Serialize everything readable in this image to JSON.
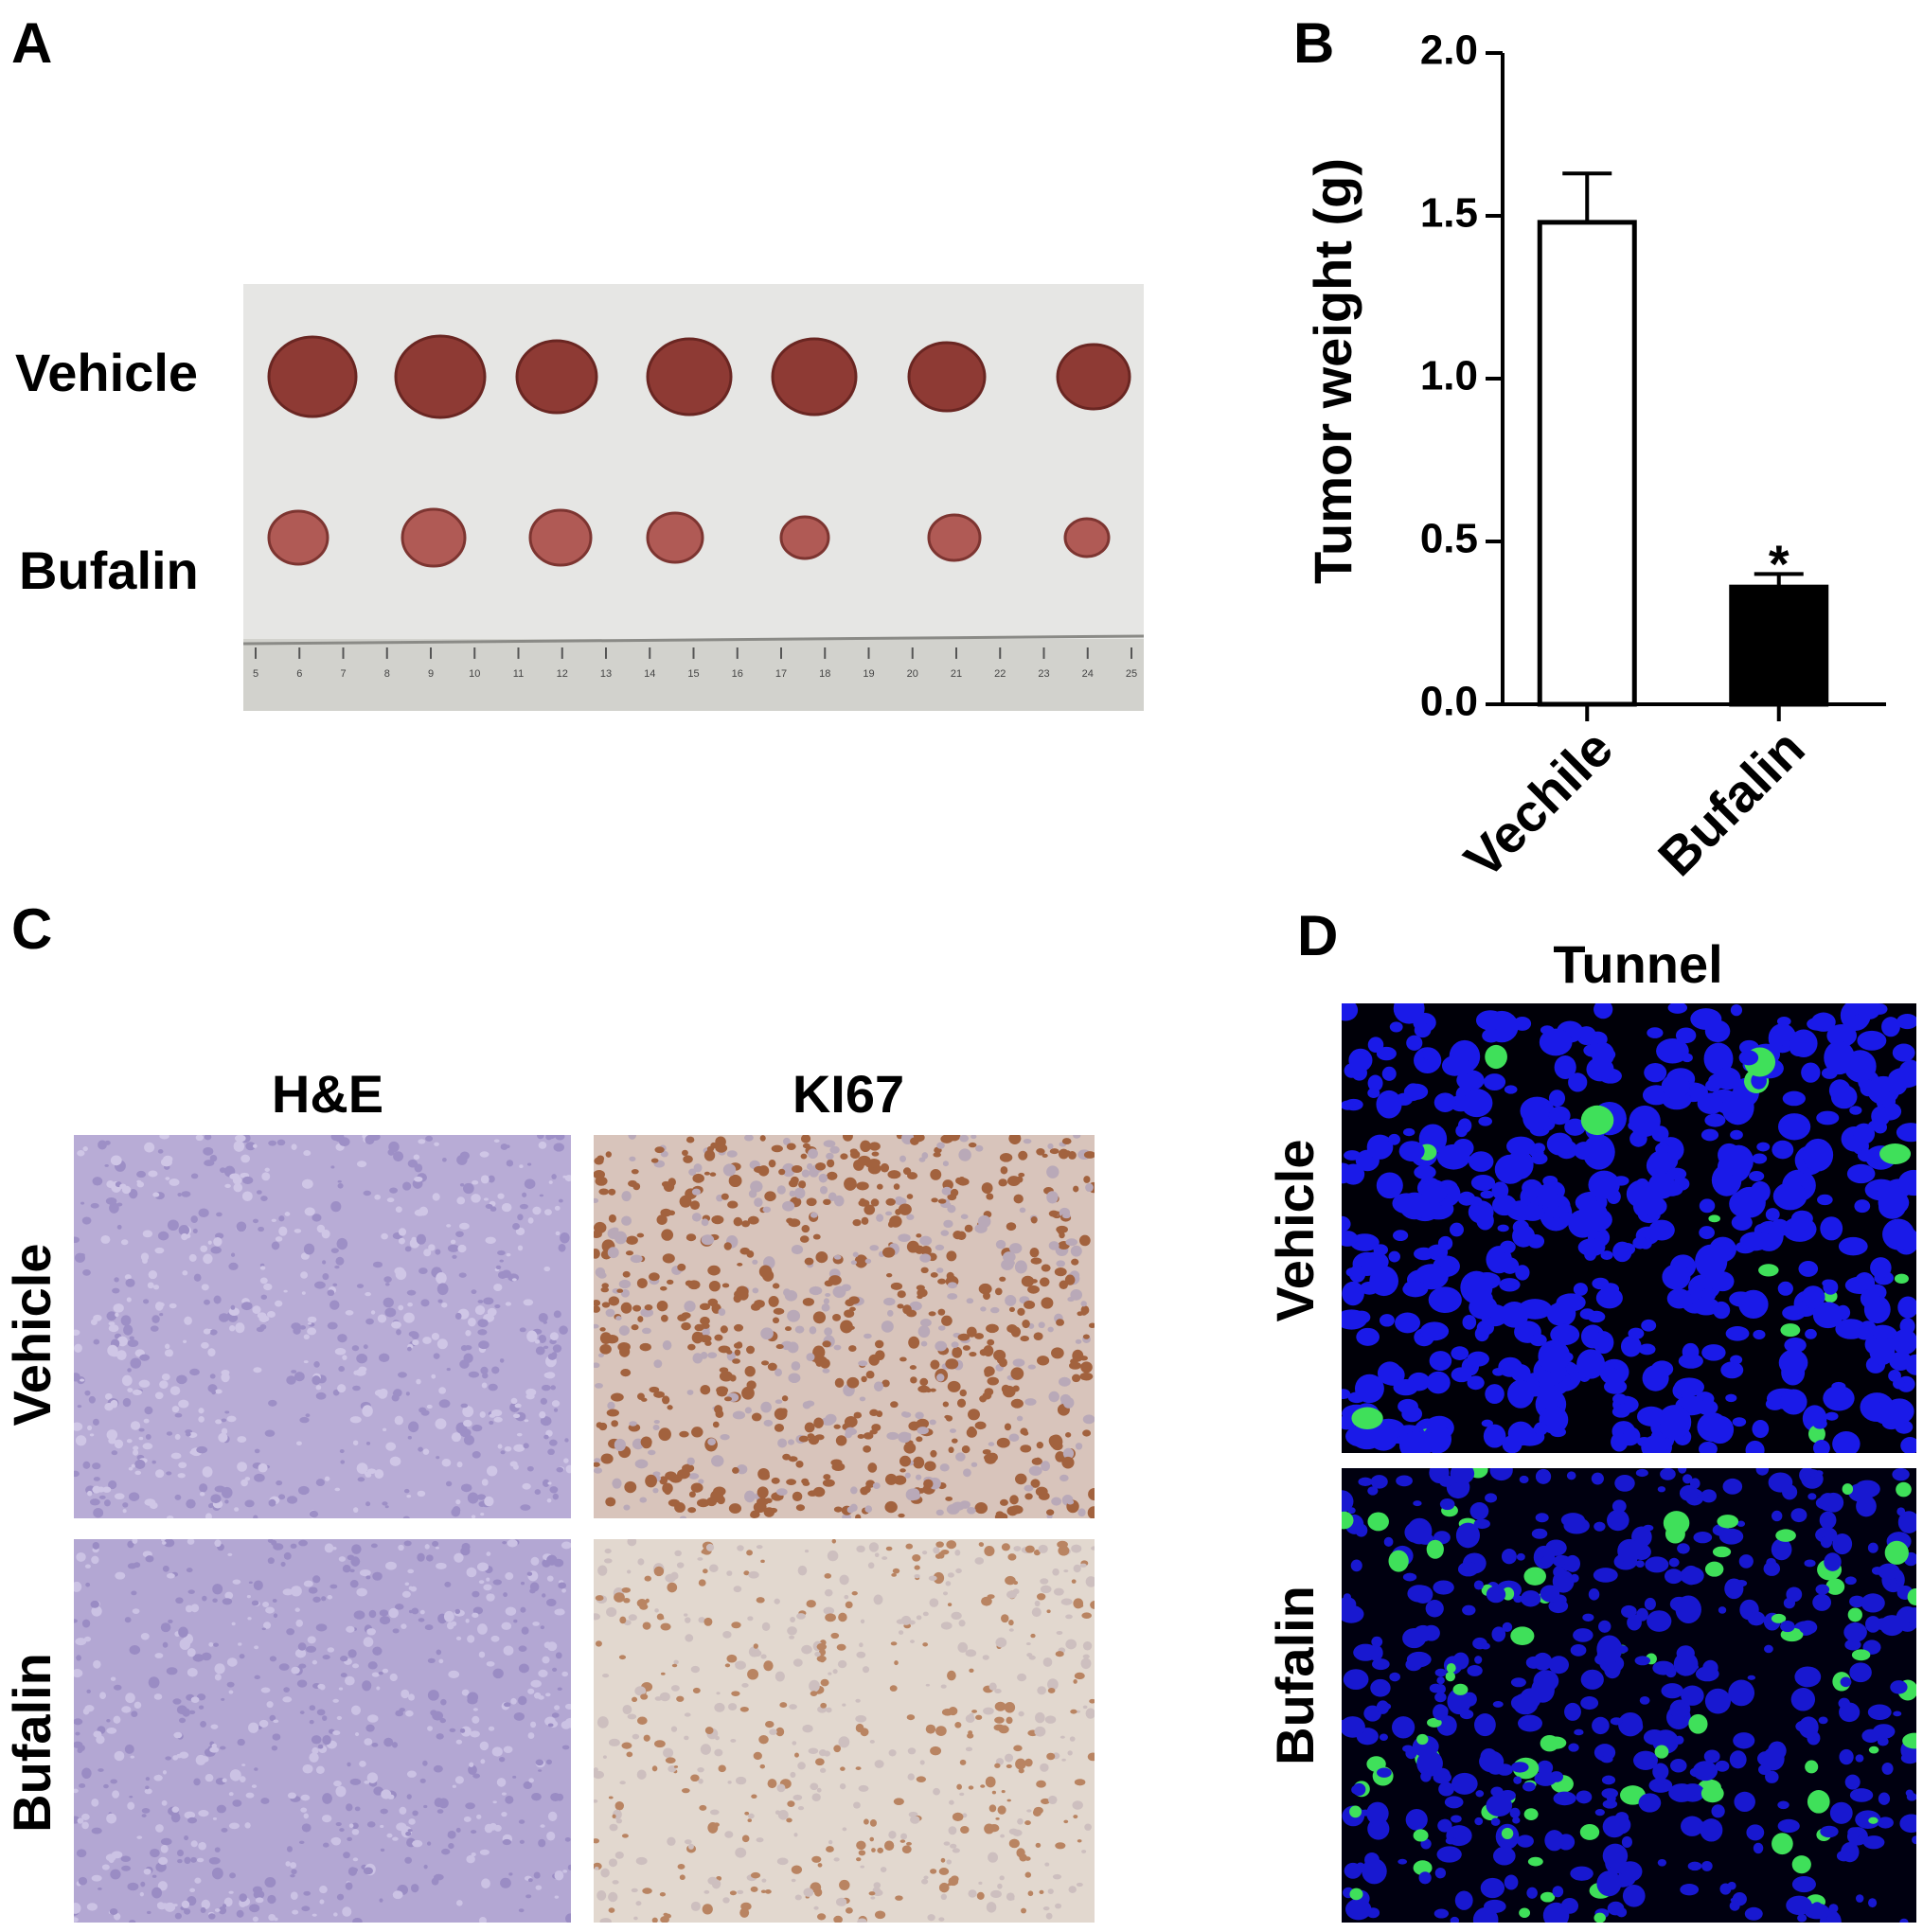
{
  "panel_a": {
    "label": "A",
    "rows": [
      "Vehicle",
      "Bufalin"
    ],
    "ruler": [
      5,
      6,
      7,
      8,
      9,
      10,
      11,
      12,
      13,
      14,
      15,
      16,
      17,
      18,
      19,
      20,
      21,
      22,
      23,
      24,
      25
    ]
  },
  "panel_b": {
    "label": "B"
  },
  "chart_data": {
    "type": "bar",
    "ylabel": "Tumor weight (g)",
    "categories": [
      "Vechile",
      "Bufalin"
    ],
    "values": [
      1.48,
      0.36
    ],
    "errors": [
      0.15,
      0.04
    ],
    "colors": [
      "#ffffff",
      "#000000"
    ],
    "annotation": "*",
    "ylim": [
      0,
      2
    ],
    "yticks": [
      {
        "value": 0,
        "label": "0.0"
      },
      {
        "value": 0.5,
        "label": "0.5"
      },
      {
        "value": 1,
        "label": "1.0"
      },
      {
        "value": 1.5,
        "label": "1.5"
      },
      {
        "value": 2,
        "label": "2.0"
      }
    ]
  },
  "panel_c": {
    "label": "C",
    "columns": [
      "H&E",
      "KI67"
    ],
    "rows": [
      "Vehicle",
      "Bufalin"
    ]
  },
  "panel_d": {
    "label": "D",
    "title": "Tunnel",
    "rows": [
      "Vehicle",
      "Bufalin"
    ]
  }
}
